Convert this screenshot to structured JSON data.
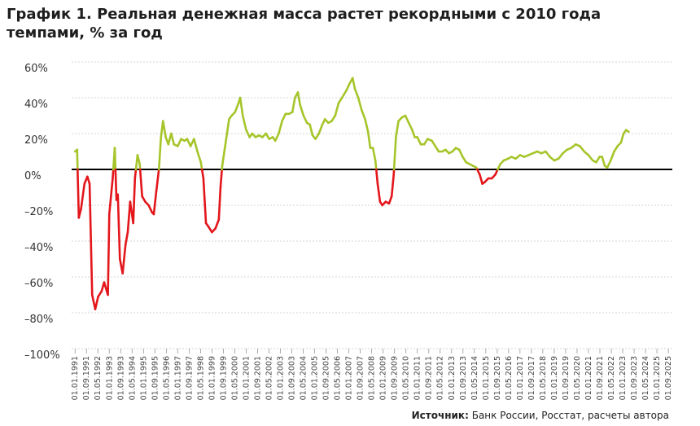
{
  "chart_data": {
    "type": "line",
    "title": [
      "График 1. Реальная денежная масса растет рекордными с 2010 года",
      "темпами, % за год"
    ],
    "source_label": "Источник:",
    "source_text": "Банк России, Росстат, расчеты автора",
    "color": "#a6c52a",
    "negative_color": "#e3161b",
    "grid": true,
    "x": [
      1991.0,
      1991.12,
      1991.22,
      1991.35,
      1991.55,
      1991.72,
      1991.85,
      1992.0,
      1992.18,
      1992.35,
      1992.55,
      1992.7,
      1992.92,
      1993.0,
      1993.2,
      1993.32,
      1993.42,
      1993.5,
      1993.62,
      1993.78,
      1993.95,
      1994.08,
      1994.22,
      1994.4,
      1994.5,
      1994.65,
      1994.78,
      1994.92,
      1995.1,
      1995.3,
      1995.5,
      1995.6,
      1995.75,
      1995.9,
      1996.02,
      1996.14,
      1996.3,
      1996.45,
      1996.62,
      1996.78,
      1997.0,
      1997.2,
      1997.4,
      1997.55,
      1997.75,
      1997.95,
      1998.15,
      1998.35,
      1998.5,
      1998.65,
      1998.8,
      1999.0,
      1999.2,
      1999.4,
      1999.5,
      1999.6,
      1999.8,
      2000.0,
      2000.15,
      2000.35,
      2000.55,
      2000.65,
      2000.8,
      2001.0,
      2001.2,
      2001.35,
      2001.55,
      2001.75,
      2001.95,
      2002.15,
      2002.35,
      2002.55,
      2002.7,
      2002.9,
      2003.1,
      2003.3,
      2003.5,
      2003.7,
      2003.85,
      2004.02,
      2004.15,
      2004.35,
      2004.55,
      2004.72,
      2004.88,
      2005.05,
      2005.25,
      2005.45,
      2005.6,
      2005.8,
      2006.0,
      2006.2,
      2006.4,
      2006.6,
      2006.85,
      2007.05,
      2007.22,
      2007.35,
      2007.55,
      2007.75,
      2007.95,
      2008.12,
      2008.25,
      2008.4,
      2008.55,
      2008.68,
      2008.82,
      2008.95,
      2009.15,
      2009.35,
      2009.5,
      2009.62,
      2009.75,
      2009.9,
      2010.1,
      2010.3,
      2010.5,
      2010.7,
      2010.85,
      2011.0,
      2011.2,
      2011.4,
      2011.6,
      2011.85,
      2012.05,
      2012.25,
      2012.45,
      2012.65,
      2012.85,
      2013.05,
      2013.25,
      2013.45,
      2013.65,
      2013.85,
      2014.05,
      2014.25,
      2014.45,
      2014.65,
      2014.8,
      2014.95,
      2015.15,
      2015.35,
      2015.55,
      2015.7,
      2015.85,
      2016.05,
      2016.3,
      2016.5,
      2016.75,
      2017.0,
      2017.25,
      2017.5,
      2017.75,
      2018.0,
      2018.25,
      2018.5,
      2018.75,
      2019.0,
      2019.25,
      2019.5,
      2019.75,
      2020.0,
      2020.25,
      2020.5,
      2020.75,
      2021.0,
      2021.25,
      2021.45,
      2021.65,
      2021.8,
      2021.95,
      2022.1,
      2022.3,
      2022.5,
      2022.7,
      2022.9,
      2023.05,
      2023.2,
      2023.35
    ],
    "values": [
      10,
      11,
      -27,
      -22,
      -8,
      -4,
      -8,
      -70,
      -78,
      -71,
      -68,
      -63,
      -70,
      -25,
      -5,
      12,
      -17,
      -14,
      -50,
      -58,
      -42,
      -35,
      -18,
      -30,
      -5,
      8,
      3,
      -15,
      -18,
      -20,
      -24,
      -25,
      -12,
      0,
      18,
      27,
      18,
      14,
      20,
      14,
      13,
      17,
      16,
      17,
      13,
      17,
      10,
      4,
      -5,
      -30,
      -32,
      -35,
      -33,
      -28,
      -10,
      2,
      15,
      28,
      30,
      32,
      37,
      40,
      30,
      22,
      18,
      20,
      18,
      19,
      18,
      20,
      17,
      18,
      16,
      20,
      27,
      31,
      31,
      32,
      40,
      43,
      36,
      30,
      26,
      25,
      19,
      17,
      20,
      25,
      28,
      26,
      27,
      30,
      37,
      40,
      44,
      48,
      51,
      45,
      40,
      33,
      28,
      21,
      12,
      12,
      5,
      -8,
      -18,
      -20,
      -18,
      -19,
      -15,
      -3,
      18,
      27,
      29,
      30,
      26,
      22,
      18,
      18,
      14,
      14,
      17,
      16,
      13,
      10,
      10,
      11,
      9,
      10,
      12,
      11,
      7,
      4,
      3,
      2,
      1,
      -3,
      -8,
      -7,
      -5,
      -5,
      -3,
      0,
      3,
      5,
      6,
      7,
      6,
      8,
      7,
      8,
      9,
      10,
      9,
      10,
      7,
      5,
      6,
      9,
      11,
      12,
      14,
      13,
      10,
      8,
      5,
      4,
      7,
      7,
      2,
      1,
      5,
      10,
      13,
      15,
      20,
      22,
      21
    ],
    "xlim": [
      1990.8,
      2025.9
    ],
    "xticks": [
      {
        "value": 1991,
        "label": "01.01.1991"
      },
      {
        "value": 1991.667,
        "label": "01.09.1991"
      },
      {
        "value": 1992.333,
        "label": "01.05.1992"
      },
      {
        "value": 1993,
        "label": "01.01.1993"
      },
      {
        "value": 1993.667,
        "label": "01.09.1993"
      },
      {
        "value": 1994.333,
        "label": "01.05.1994"
      },
      {
        "value": 1995,
        "label": "01.01.1995"
      },
      {
        "value": 1995.667,
        "label": "01.09.1995"
      },
      {
        "value": 1996.333,
        "label": "01.05.1996"
      },
      {
        "value": 1997,
        "label": "01.01.1997"
      },
      {
        "value": 1997.667,
        "label": "01.09.1997"
      },
      {
        "value": 1998.333,
        "label": "01.05.1998"
      },
      {
        "value": 1999,
        "label": "01.01.1999"
      },
      {
        "value": 1999.667,
        "label": "01.09.1999"
      },
      {
        "value": 2000.333,
        "label": "01.05.2000"
      },
      {
        "value": 2001,
        "label": "01.01.2001"
      },
      {
        "value": 2001.667,
        "label": "01.09.2001"
      },
      {
        "value": 2002.333,
        "label": "01.05.2002"
      },
      {
        "value": 2003,
        "label": "01.01.2003"
      },
      {
        "value": 2003.667,
        "label": "01.09.2003"
      },
      {
        "value": 2004.333,
        "label": "01.05.2004"
      },
      {
        "value": 2005,
        "label": "01.01.2005"
      },
      {
        "value": 2005.667,
        "label": "01.09.2005"
      },
      {
        "value": 2006.333,
        "label": "01.05.2006"
      },
      {
        "value": 2007,
        "label": "01.01.2007"
      },
      {
        "value": 2007.667,
        "label": "01.09.2007"
      },
      {
        "value": 2008.333,
        "label": "01.05.2008"
      },
      {
        "value": 2009,
        "label": "01.01.2009"
      },
      {
        "value": 2009.667,
        "label": "01.09.2009"
      },
      {
        "value": 2010.333,
        "label": "01.05.2010"
      },
      {
        "value": 2011,
        "label": "01.01.2011"
      },
      {
        "value": 2011.667,
        "label": "01.09.2011"
      },
      {
        "value": 2012.333,
        "label": "01.05.2012"
      },
      {
        "value": 2013,
        "label": "01.01.2013"
      },
      {
        "value": 2013.667,
        "label": "01.09.2013"
      },
      {
        "value": 2014.333,
        "label": "01.05.2014"
      },
      {
        "value": 2015,
        "label": "01.01.2015"
      },
      {
        "value": 2015.667,
        "label": "01.09.2015"
      },
      {
        "value": 2016.333,
        "label": "01.05.2016"
      },
      {
        "value": 2017,
        "label": "01.01.2017"
      },
      {
        "value": 2017.667,
        "label": "01.09.2017"
      },
      {
        "value": 2018.333,
        "label": "01.05.2018"
      },
      {
        "value": 2019,
        "label": "01.01.2019"
      },
      {
        "value": 2019.667,
        "label": "01.09.2019"
      },
      {
        "value": 2020.333,
        "label": "01.05.2020"
      },
      {
        "value": 2021,
        "label": "01.01.2021"
      },
      {
        "value": 2021.667,
        "label": "01.09.2021"
      },
      {
        "value": 2022.333,
        "label": "01.05.2022"
      },
      {
        "value": 2023,
        "label": "01.01.2023"
      },
      {
        "value": 2023.667,
        "label": "01.09.2023"
      },
      {
        "value": 2024.333,
        "label": "01.05.2024"
      },
      {
        "value": 2025,
        "label": "01.01.2025"
      },
      {
        "value": 2025.667,
        "label": "01.09.2025"
      }
    ],
    "ylim": [
      -100,
      60
    ],
    "yticks": [
      {
        "value": 60,
        "label": "60%"
      },
      {
        "value": 40,
        "label": "40%"
      },
      {
        "value": 20,
        "label": "20%"
      },
      {
        "value": 0,
        "label": "0%"
      },
      {
        "value": -20,
        "label": "–20%"
      },
      {
        "value": -40,
        "label": "–40%"
      },
      {
        "value": -60,
        "label": "–60%"
      },
      {
        "value": -80,
        "label": "–80%"
      },
      {
        "value": -100,
        "label": "–100%"
      }
    ]
  }
}
